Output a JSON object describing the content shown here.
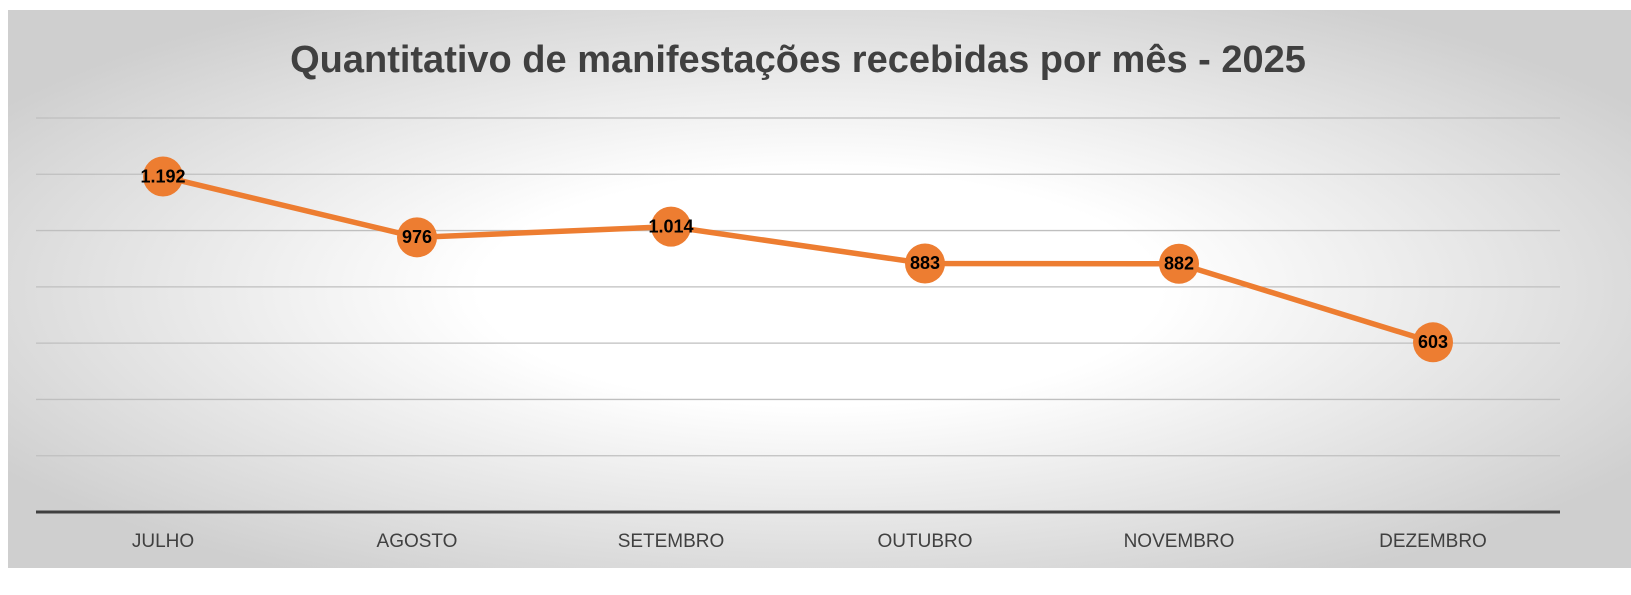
{
  "chart_data": {
    "type": "line",
    "title": "Quantitativo de manifestações recebidas por mês - 2025",
    "categories": [
      "JULHO",
      "AGOSTO",
      "SETEMBRO",
      "OUTUBRO",
      "NOVEMBRO",
      "DEZEMBRO"
    ],
    "series": [
      {
        "color": "#ED7D31",
        "values": [
          1192,
          976,
          1014,
          883,
          882,
          603
        ],
        "value_labels": [
          "1.192",
          "976",
          "1.014",
          "883",
          "882",
          "603"
        ]
      }
    ],
    "ylim": [
      0,
      1400
    ],
    "yticks": [
      0,
      200,
      400,
      600,
      800,
      1000,
      1200,
      1400
    ],
    "grid": true
  }
}
